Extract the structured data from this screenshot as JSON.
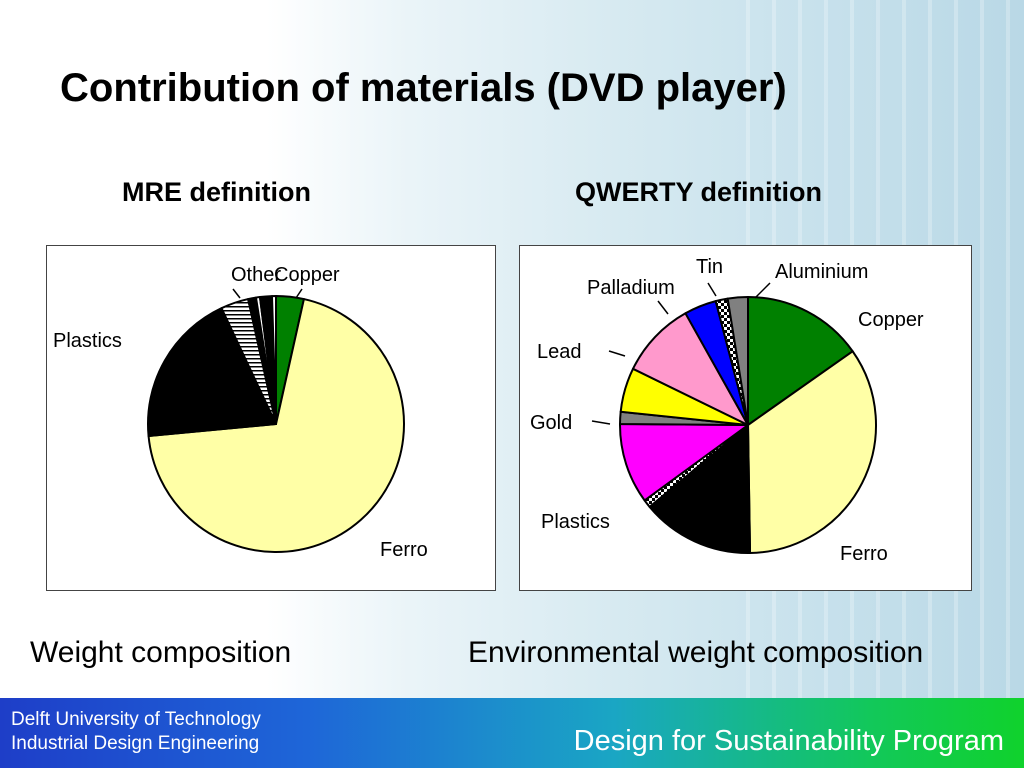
{
  "title": "Contribution of materials (DVD player)",
  "footer": {
    "line1": "Delft University of Technology",
    "line2": "Industrial Design Engineering",
    "program": "Design for Sustainability Program"
  },
  "chart_data": [
    {
      "type": "pie",
      "title": "MRE definition",
      "caption": "Weight composition",
      "slices": [
        {
          "label": "Copper",
          "value": 3.5,
          "color": "#008000",
          "pattern": "solid"
        },
        {
          "label": "Ferro",
          "value": 70.0,
          "color": "#ffffa6",
          "pattern": "solid"
        },
        {
          "label": "Plastics",
          "value": 19.5,
          "color": "#000000",
          "pattern": "solid"
        },
        {
          "label": "Other",
          "value": 3.5,
          "color": "#ffffff",
          "pattern": "hstripe"
        },
        {
          "label": "",
          "value": 1.0,
          "color": "#000000",
          "pattern": "solid"
        },
        {
          "label": "",
          "value": 0.5,
          "color": "#ffffff",
          "pattern": "solid"
        },
        {
          "label": "",
          "value": 1.5,
          "color": "#000000",
          "pattern": "solid"
        },
        {
          "label": "",
          "value": 0.5,
          "color": "#ffffff",
          "pattern": "solid"
        }
      ]
    },
    {
      "type": "pie",
      "title": "QWERTY definition",
      "caption": "Environmental weight composition",
      "slices": [
        {
          "label": "Copper",
          "value": 15.0,
          "color": "#008000",
          "pattern": "solid"
        },
        {
          "label": "Ferro",
          "value": 34.0,
          "color": "#ffffa6",
          "pattern": "solid"
        },
        {
          "label": "Plastics",
          "value": 14.0,
          "color": "#000000",
          "pattern": "solid"
        },
        {
          "label": "",
          "value": 1.0,
          "color": "#ffffff",
          "pattern": "check"
        },
        {
          "label": "Gold",
          "value": 10.0,
          "color": "#ff00ff",
          "pattern": "solid"
        },
        {
          "label": "",
          "value": 1.5,
          "color": "#808080",
          "pattern": "solid"
        },
        {
          "label": "Lead",
          "value": 5.5,
          "color": "#ffff00",
          "pattern": "solid"
        },
        {
          "label": "Palladium",
          "value": 9.5,
          "color": "#ff99cc",
          "pattern": "solid"
        },
        {
          "label": "Tin",
          "value": 4.0,
          "color": "#0000ff",
          "pattern": "solid"
        },
        {
          "label": "",
          "value": 1.5,
          "color": "#ffffff",
          "pattern": "check"
        },
        {
          "label": "Aluminium",
          "value": 2.5,
          "color": "#808080",
          "pattern": "solid"
        }
      ]
    }
  ]
}
